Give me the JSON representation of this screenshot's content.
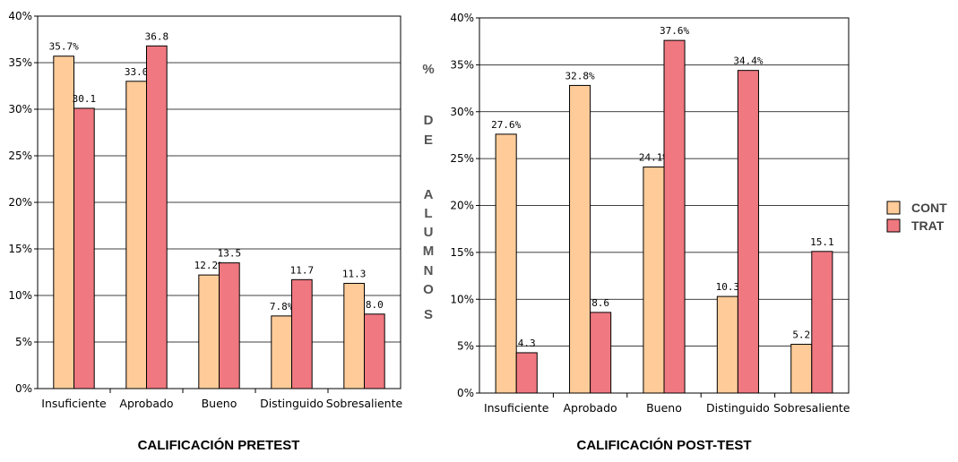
{
  "colors": {
    "control": "#FFCC99",
    "treatment": "#F07880",
    "grid": "#000000"
  },
  "y_axis_title_letters": [
    "%",
    "D",
    "E",
    "A",
    "L",
    "U",
    "M",
    "N",
    "O",
    "S"
  ],
  "legend": [
    "CONT",
    "TRAT"
  ],
  "chart_data": [
    {
      "type": "bar",
      "title": "CALIFICACIÓN PRETEST",
      "categories": [
        "Insuficiente",
        "Aprobado",
        "Bueno",
        "Distinguido",
        "Sobresaliente"
      ],
      "ylim": [
        0,
        40
      ],
      "yticks": [
        "0%",
        "5%",
        "10%",
        "15%",
        "20%",
        "25%",
        "30%",
        "35%",
        "40%"
      ],
      "grid": true,
      "series": [
        {
          "name": "CONT",
          "values": [
            35.7,
            33.0,
            12.2,
            7.8,
            11.3
          ],
          "labels": [
            "35.7%",
            "33.0",
            "12.2%",
            "7.8%",
            "11.3"
          ]
        },
        {
          "name": "TRAT",
          "values": [
            30.1,
            36.8,
            13.5,
            11.7,
            8.0
          ],
          "labels": [
            "30.1",
            "36.8",
            "13.5",
            "11.7",
            "8.0"
          ]
        }
      ]
    },
    {
      "type": "bar",
      "title": "CALIFICACIÓN POST-TEST",
      "categories": [
        "Insuficiente",
        "Aprobado",
        "Bueno",
        "Distinguido",
        "Sobresaliente"
      ],
      "ylim": [
        0,
        40
      ],
      "yticks": [
        "0%",
        "5%",
        "10%",
        "15%",
        "20%",
        "25%",
        "30%",
        "35%",
        "40%"
      ],
      "grid": true,
      "series": [
        {
          "name": "CONT",
          "values": [
            27.6,
            32.8,
            24.1,
            10.3,
            5.2
          ],
          "labels": [
            "27.6%",
            "32.8%",
            "24.1%",
            "10.3",
            "5.2"
          ]
        },
        {
          "name": "TRAT",
          "values": [
            4.3,
            8.6,
            37.6,
            34.4,
            15.1
          ],
          "labels": [
            "4.3",
            "8.6",
            "37.6%",
            "34.4%",
            "15.1"
          ]
        }
      ]
    }
  ]
}
